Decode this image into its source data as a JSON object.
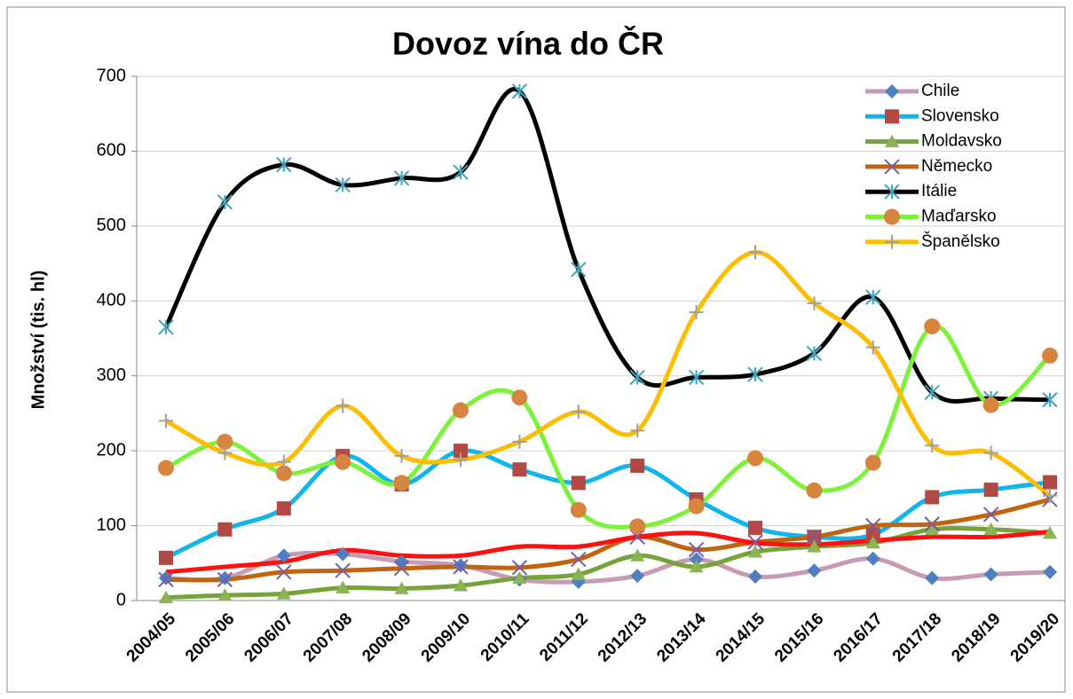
{
  "chart_data": {
    "type": "line",
    "title": "Dovoz vína do ČR",
    "y_label": "Množství (tis. hl)",
    "categories": [
      "2004/05",
      "2005/06",
      "2006/07",
      "2007/08",
      "2008/09",
      "2009/10",
      "2010/11",
      "2011/12",
      "2012/13",
      "2013/14",
      "2014/15",
      "2015/16",
      "2016/17",
      "2017/18",
      "2018/19",
      "2019/20"
    ],
    "ylim": [
      0,
      700
    ],
    "yticks": [
      0,
      100,
      200,
      300,
      400,
      500,
      600,
      700
    ],
    "grid": true,
    "smooth": true,
    "legend": "top-right",
    "series": [
      {
        "name": "Chile",
        "color": "#c89bb5",
        "marker": "diamond",
        "marker_color": "#4f7fc0",
        "values": [
          30,
          30,
          60,
          62,
          52,
          47,
          28,
          25,
          33,
          55,
          32,
          40,
          56,
          30,
          35,
          38
        ]
      },
      {
        "name": "Slovensko",
        "color": "#12b4ec",
        "marker": "square",
        "marker_color": "#b14a45",
        "values": [
          57,
          95,
          123,
          193,
          155,
          200,
          175,
          157,
          180,
          135,
          97,
          85,
          88,
          138,
          148,
          158
        ]
      },
      {
        "name": "Moldavsko",
        "color": "#76a33a",
        "marker": "triangle",
        "marker_color": "#8db356",
        "values": [
          4,
          7,
          9,
          17,
          16,
          20,
          30,
          35,
          60,
          45,
          65,
          72,
          77,
          95,
          95,
          90
        ]
      },
      {
        "name": "Německo",
        "color": "#c2630f",
        "marker": "x",
        "marker_color": "#7a5da0",
        "values": [
          28,
          28,
          38,
          40,
          43,
          45,
          44,
          55,
          85,
          68,
          78,
          85,
          100,
          102,
          115,
          135
        ]
      },
      {
        "name": "Itálie",
        "color": "#000000",
        "marker": "asterisk",
        "marker_color": "#3fa5bd",
        "values": [
          365,
          532,
          582,
          555,
          564,
          572,
          680,
          442,
          298,
          298,
          302,
          330,
          405,
          278,
          270,
          268
        ]
      },
      {
        "name": "Maďarsko",
        "color": "#7cf23a",
        "marker": "circle",
        "marker_color": "#d7843f",
        "values": [
          177,
          212,
          170,
          185,
          157,
          254,
          271,
          121,
          99,
          126,
          190,
          147,
          184,
          366,
          261,
          327
        ]
      },
      {
        "name": "Španělsko",
        "color": "#fdbd00",
        "marker": "plus",
        "marker_color": "#a0a0a0",
        "values": [
          240,
          197,
          185,
          260,
          193,
          188,
          212,
          252,
          227,
          385,
          465,
          397,
          338,
          207,
          197,
          140
        ]
      },
      {
        "color": "#ff1010",
        "values": [
          38,
          45,
          52,
          67,
          60,
          60,
          72,
          72,
          85,
          90,
          77,
          75,
          80,
          85,
          85,
          92
        ]
      }
    ]
  }
}
